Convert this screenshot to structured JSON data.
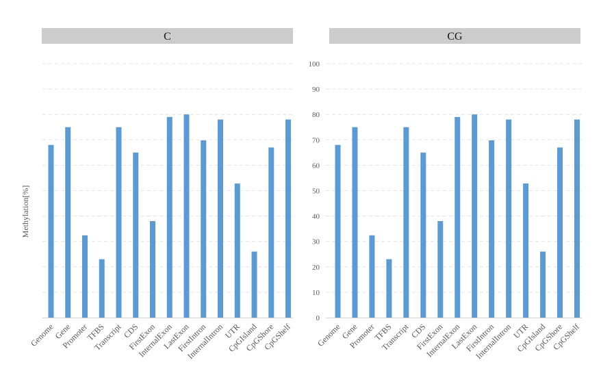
{
  "chart_data": [
    {
      "type": "bar",
      "title": "C",
      "ylabel": "Methylation[%]",
      "categories": [
        "Genome",
        "Gene",
        "Promoter",
        "TFBS",
        "Transcript",
        "CDS",
        "FirstExon",
        "InternalExon",
        "LastExon",
        "FirstIntron",
        "InternalIntron",
        "UTR",
        "CpGIsland",
        "CpGShore",
        "CpGShelf"
      ],
      "values": [
        68,
        75,
        32.4,
        23,
        75,
        65,
        38,
        79,
        80,
        69.8,
        78,
        52.8,
        26,
        67,
        78
      ],
      "ylim": [
        0,
        100
      ],
      "grid": true
    },
    {
      "type": "bar",
      "title": "CG",
      "categories": [
        "Genome",
        "Gene",
        "Promoter",
        "TFBS",
        "Transcript",
        "CDS",
        "FirstExon",
        "InternalExon",
        "LastExon",
        "FirstIntron",
        "InternalIntron",
        "UTR",
        "CpGIsland",
        "CpGShore",
        "CpGShelf"
      ],
      "values": [
        68,
        75,
        32.4,
        23,
        75,
        65,
        38,
        79,
        80,
        69.8,
        78,
        52.8,
        26,
        67,
        78
      ],
      "ylim": [
        0,
        100
      ],
      "yticks": [
        0,
        10,
        20,
        30,
        40,
        50,
        60,
        70,
        80,
        90,
        100
      ],
      "grid": true
    }
  ],
  "colors": {
    "bar": "#5b9bd5",
    "header_bg": "#cccccc",
    "grid": "#e4e4e4",
    "axis": "#d0d0d0",
    "text": "#595959"
  }
}
